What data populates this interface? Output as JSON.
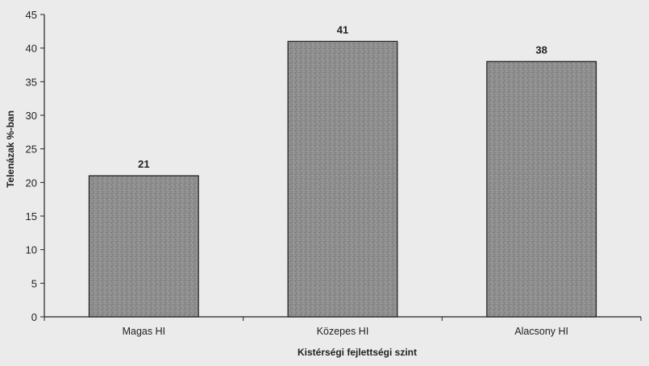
{
  "chart_data": {
    "type": "bar",
    "categories": [
      "Magas HI",
      "Közepes HI",
      "Alacsony HI"
    ],
    "values": [
      21,
      41,
      38
    ],
    "title": "",
    "xlabel": "Kistérségi fejlettségi szint",
    "ylabel": "Telenázak %-ban",
    "ylim": [
      0,
      45
    ],
    "yticks": [
      0,
      5,
      10,
      15,
      20,
      25,
      30,
      35,
      40,
      45
    ],
    "data_labels": [
      "21",
      "41",
      "38"
    ],
    "grid": false,
    "legend": "none",
    "bar_color": "#8c8c8c",
    "bar_edge_color": "#1a1a1a"
  }
}
